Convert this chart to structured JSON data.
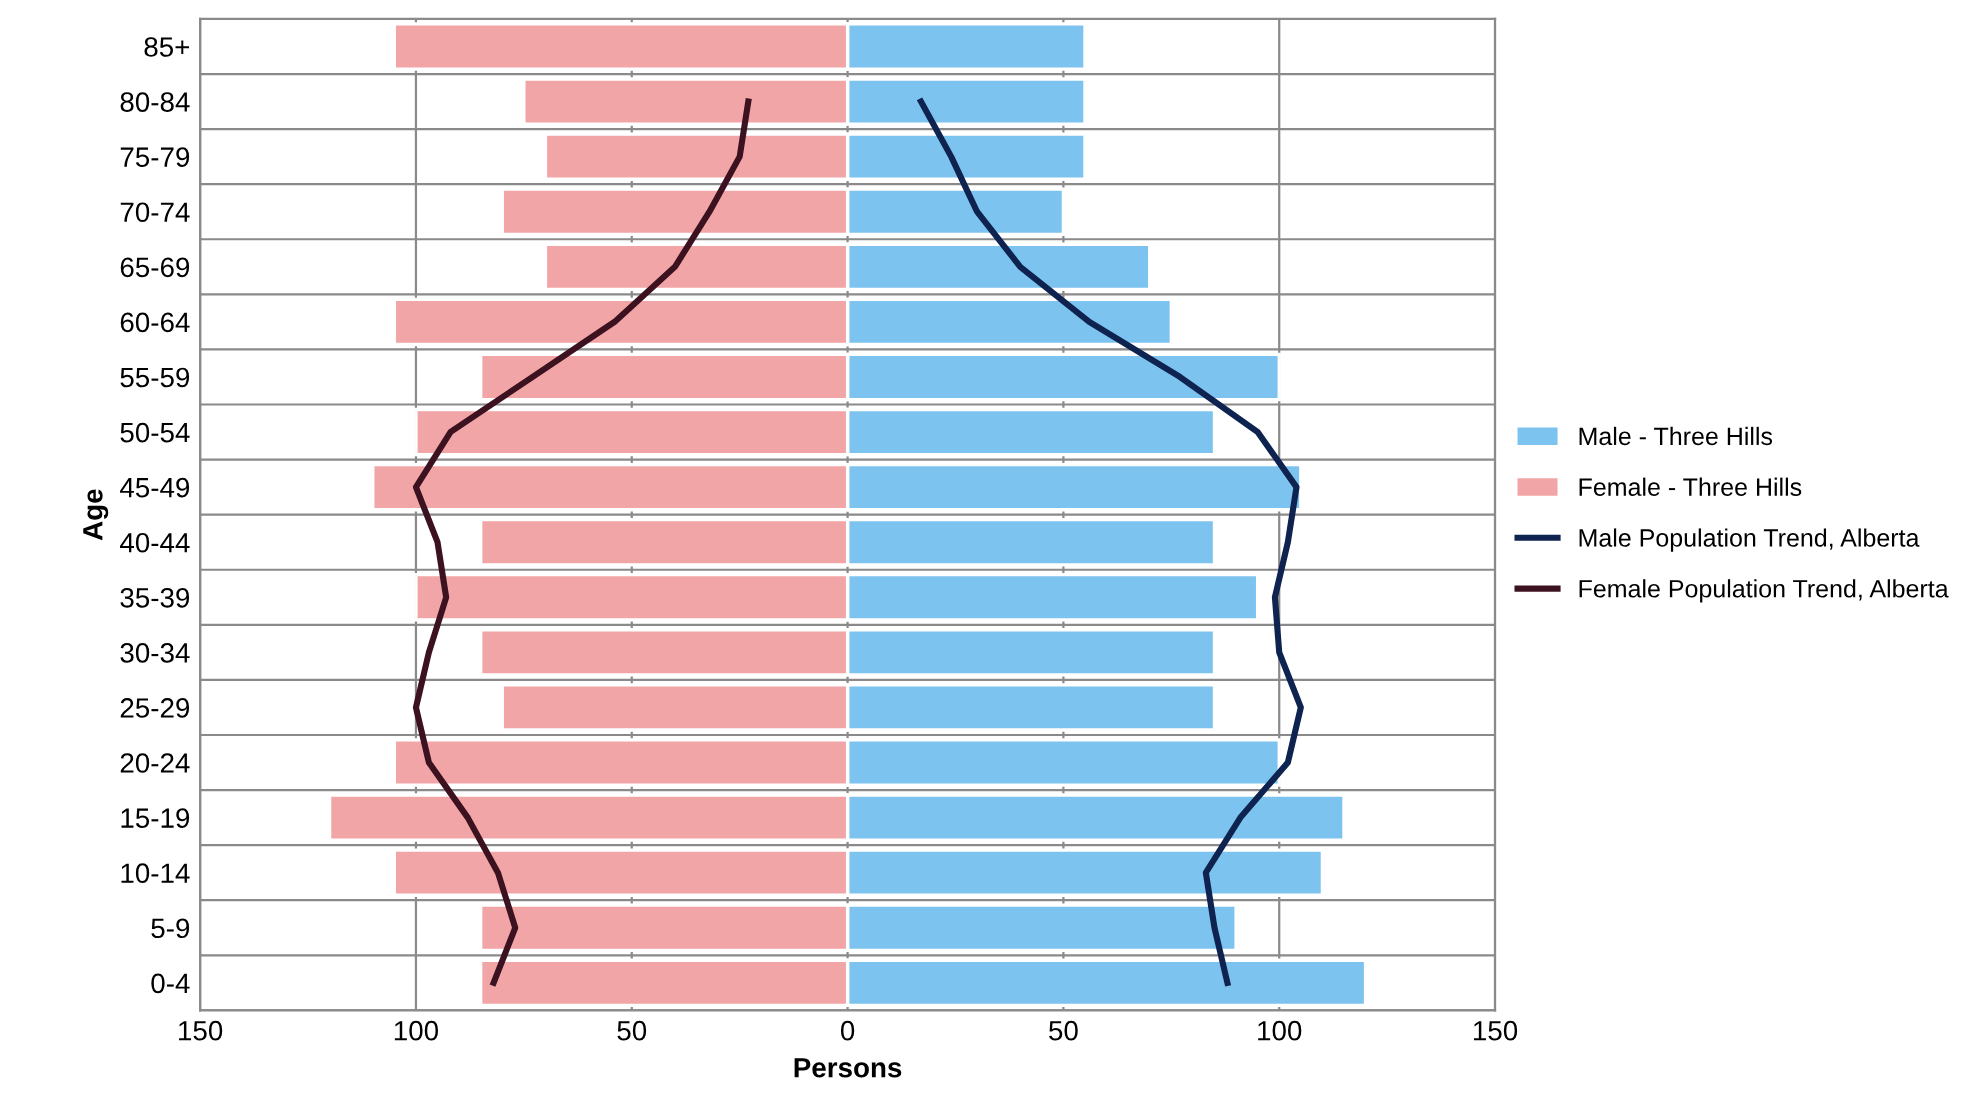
{
  "chart_data": {
    "type": "bar",
    "orientation": "horizontal",
    "xlabel": "Persons",
    "ylabel": "Age",
    "categories": [
      "85+",
      "80-84",
      "75-79",
      "70-74",
      "65-69",
      "60-64",
      "55-59",
      "50-54",
      "45-49",
      "40-44",
      "35-39",
      "30-34",
      "25-29",
      "20-24",
      "15-19",
      "10-14",
      "5-9",
      "0-4"
    ],
    "series": [
      {
        "name": "Male - Three Hills",
        "color": "#7dc3ef",
        "values": [
          55,
          55,
          55,
          50,
          70,
          75,
          100,
          85,
          105,
          85,
          95,
          85,
          85,
          100,
          115,
          110,
          90,
          120
        ]
      },
      {
        "name": "Female - Three Hills",
        "color": "#f2a5a6",
        "values": [
          -105,
          -75,
          -70,
          -80,
          -70,
          -105,
          -85,
          -100,
          -110,
          -85,
          -100,
          -85,
          -80,
          -105,
          -120,
          -105,
          -85,
          -85
        ]
      },
      {
        "name": "Male Population Trend, Alberta",
        "type": "line",
        "color": "#0f2350",
        "values": [
          null,
          17,
          24,
          30,
          40,
          56,
          77,
          95,
          104,
          102,
          99,
          100,
          105,
          102,
          91,
          83,
          85,
          88
        ]
      },
      {
        "name": "Female Population Trend, Alberta",
        "type": "line",
        "color": "#3d1220",
        "values": [
          null,
          -23,
          -25,
          -32,
          -40,
          -54,
          -73,
          -92,
          -100,
          -95,
          -93,
          -97,
          -100,
          -97,
          -88,
          -81,
          -77,
          -82
        ]
      }
    ],
    "xlim": [
      -150,
      150
    ],
    "xticks": [
      {
        "value": -150,
        "label": "150"
      },
      {
        "value": -100,
        "label": "100"
      },
      {
        "value": -50,
        "label": "50"
      },
      0,
      50,
      100,
      150
    ],
    "stacked": true,
    "grid": true,
    "legend": "right",
    "marker": "none",
    "line_style": "solid"
  }
}
